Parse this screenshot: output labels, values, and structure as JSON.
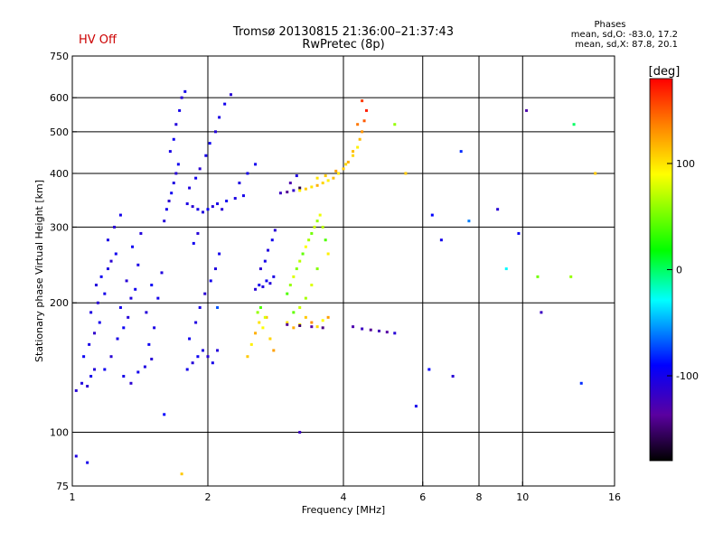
{
  "header": {
    "title_line1": "Tromsø 20130815 21:36:00–21:37:43",
    "title_line2": "RwPretec (8p)",
    "status": "HV Off"
  },
  "stats": {
    "heading": "Phases",
    "line1": "mean, sd,O: -83.0, 17.2",
    "line2": "mean, sd,X:  87.8, 20.1"
  },
  "colorbar": {
    "label": "[deg]",
    "ticks": [
      {
        "label": "100",
        "value": 100
      },
      {
        "label": "0",
        "value": 0
      },
      {
        "label": "-100",
        "value": -100
      }
    ],
    "range": [
      -180,
      180
    ]
  },
  "chart_data": {
    "type": "scatter",
    "xlabel": "Frequency [MHz]",
    "ylabel": "Stationary phase Virtual Height [km]",
    "x_scale": "log",
    "y_scale": "log",
    "xlim": [
      1,
      16
    ],
    "ylim": [
      75,
      750
    ],
    "grid": true,
    "x_ticks": [
      {
        "label": "1",
        "value": 1
      },
      {
        "label": "2",
        "value": 2
      },
      {
        "label": "4",
        "value": 4
      },
      {
        "label": "6",
        "value": 6
      },
      {
        "label": "8",
        "value": 8
      },
      {
        "label": "10",
        "value": 10
      },
      {
        "label": "16",
        "value": 16
      }
    ],
    "x_grid": [
      2,
      4,
      6,
      8,
      10
    ],
    "y_ticks": [
      {
        "label": "75",
        "value": 75
      },
      {
        "label": "100",
        "value": 100
      },
      {
        "label": "200",
        "value": 200
      },
      {
        "label": "300",
        "value": 300
      },
      {
        "label": "400",
        "value": 400
      },
      {
        "label": "500",
        "value": 500
      },
      {
        "label": "600",
        "value": 600
      },
      {
        "label": "750",
        "value": 750
      }
    ],
    "y_grid": [
      100,
      200,
      300,
      400,
      500,
      600
    ],
    "series": [
      {
        "values": [
          [
            1.02,
            125,
            -110
          ],
          [
            1.05,
            130,
            -105
          ],
          [
            1.08,
            128,
            -112
          ],
          [
            1.1,
            135,
            -100
          ],
          [
            1.12,
            140,
            -108
          ],
          [
            1.06,
            150,
            -95
          ],
          [
            1.09,
            160,
            -102
          ],
          [
            1.12,
            170,
            -115
          ],
          [
            1.15,
            180,
            -99
          ],
          [
            1.1,
            190,
            -104
          ],
          [
            1.14,
            200,
            -110
          ],
          [
            1.18,
            210,
            -101
          ],
          [
            1.13,
            220,
            -107
          ],
          [
            1.16,
            230,
            -96
          ],
          [
            1.2,
            240,
            -105
          ],
          [
            1.22,
            250,
            -112
          ],
          [
            1.25,
            260,
            -98
          ],
          [
            1.2,
            280,
            -103
          ],
          [
            1.24,
            300,
            -109
          ],
          [
            1.28,
            320,
            -100
          ],
          [
            1.18,
            140,
            -97
          ],
          [
            1.22,
            150,
            -111
          ],
          [
            1.26,
            165,
            -102
          ],
          [
            1.3,
            175,
            -95
          ],
          [
            1.33,
            185,
            -108
          ],
          [
            1.28,
            195,
            -100
          ],
          [
            1.35,
            205,
            -106
          ],
          [
            1.38,
            215,
            -98
          ],
          [
            1.32,
            225,
            -110
          ],
          [
            1.4,
            245,
            -103
          ],
          [
            1.36,
            270,
            -96
          ],
          [
            1.42,
            290,
            -107
          ],
          [
            1.3,
            135,
            -101
          ],
          [
            1.35,
            130,
            -112
          ],
          [
            1.4,
            138,
            -99
          ],
          [
            1.45,
            142,
            -105
          ],
          [
            1.5,
            148,
            -110
          ],
          [
            1.48,
            160,
            -97
          ],
          [
            1.52,
            175,
            -103
          ],
          [
            1.46,
            190,
            -108
          ],
          [
            1.55,
            205,
            -100
          ],
          [
            1.5,
            220,
            -95
          ],
          [
            1.58,
            235,
            -106
          ]
        ]
      },
      {
        "values": [
          [
            1.6,
            310,
            -108
          ],
          [
            1.62,
            330,
            -100
          ],
          [
            1.64,
            345,
            -112
          ],
          [
            1.66,
            360,
            -97
          ],
          [
            1.68,
            380,
            -105
          ],
          [
            1.7,
            400,
            -110
          ],
          [
            1.72,
            420,
            -98
          ],
          [
            1.65,
            450,
            -103
          ],
          [
            1.68,
            480,
            -96
          ],
          [
            1.7,
            520,
            -107
          ],
          [
            1.73,
            560,
            -101
          ],
          [
            1.75,
            600,
            -109
          ],
          [
            1.78,
            620,
            -99
          ],
          [
            1.8,
            340,
            -104
          ],
          [
            1.85,
            335,
            -111
          ],
          [
            1.9,
            330,
            -100
          ],
          [
            1.95,
            325,
            -106
          ],
          [
            2.0,
            330,
            -95
          ],
          [
            2.05,
            335,
            -108
          ],
          [
            2.1,
            340,
            -102
          ],
          [
            2.15,
            330,
            -110
          ],
          [
            2.2,
            345,
            -97
          ],
          [
            2.3,
            350,
            -104
          ],
          [
            2.4,
            355,
            -100
          ],
          [
            1.82,
            370,
            -106
          ],
          [
            1.88,
            390,
            -99
          ],
          [
            1.92,
            410,
            -112
          ],
          [
            1.98,
            440,
            -101
          ],
          [
            2.02,
            470,
            -96
          ],
          [
            2.08,
            500,
            -108
          ],
          [
            2.12,
            540,
            -103
          ],
          [
            2.18,
            580,
            -99
          ],
          [
            2.25,
            610,
            -110
          ],
          [
            2.35,
            380,
            -105
          ],
          [
            2.45,
            400,
            -100
          ],
          [
            2.55,
            420,
            -98
          ]
        ]
      },
      {
        "values": [
          [
            1.8,
            140,
            -100
          ],
          [
            1.85,
            145,
            -108
          ],
          [
            1.9,
            150,
            -96
          ],
          [
            1.95,
            155,
            -104
          ],
          [
            2.0,
            150,
            -110
          ],
          [
            2.05,
            145,
            -101
          ],
          [
            2.1,
            155,
            -107
          ],
          [
            1.82,
            165,
            -98
          ],
          [
            1.88,
            180,
            -105
          ],
          [
            1.92,
            195,
            -102
          ],
          [
            1.97,
            210,
            -111
          ],
          [
            2.03,
            225,
            -99
          ],
          [
            2.08,
            240,
            -106
          ],
          [
            2.12,
            260,
            -100
          ],
          [
            1.86,
            275,
            -97
          ],
          [
            1.9,
            290,
            -109
          ]
        ]
      },
      {
        "values": [
          [
            2.45,
            150,
            110
          ],
          [
            2.5,
            160,
            95
          ],
          [
            2.55,
            170,
            120
          ],
          [
            2.6,
            180,
            100
          ],
          [
            2.65,
            175,
            90
          ],
          [
            2.7,
            185,
            115
          ],
          [
            2.75,
            165,
            105
          ],
          [
            2.8,
            155,
            125
          ],
          [
            2.58,
            190,
            60
          ],
          [
            2.62,
            195,
            40
          ],
          [
            2.68,
            185,
            80
          ]
        ]
      },
      {
        "values": [
          [
            2.55,
            215,
            -110
          ],
          [
            2.6,
            220,
            -100
          ],
          [
            2.65,
            218,
            -105
          ],
          [
            2.7,
            225,
            -98
          ],
          [
            2.75,
            222,
            -108
          ],
          [
            2.8,
            230,
            -103
          ],
          [
            2.62,
            240,
            -112
          ],
          [
            2.68,
            250,
            -101
          ],
          [
            2.72,
            265,
            -106
          ],
          [
            2.78,
            280,
            -99
          ],
          [
            2.82,
            295,
            -110
          ]
        ]
      },
      {
        "values": [
          [
            2.9,
            360,
            -120
          ],
          [
            3.0,
            362,
            -140
          ],
          [
            3.1,
            365,
            -115
          ],
          [
            3.2,
            370,
            -160
          ],
          [
            3.05,
            380,
            -130
          ],
          [
            3.15,
            395,
            -105
          ]
        ]
      },
      {
        "values": [
          [
            3.2,
            365,
            95
          ],
          [
            3.3,
            368,
            110
          ],
          [
            3.4,
            372,
            100
          ],
          [
            3.5,
            375,
            120
          ],
          [
            3.6,
            380,
            105
          ],
          [
            3.7,
            385,
            95
          ],
          [
            3.8,
            390,
            115
          ],
          [
            3.9,
            400,
            100
          ],
          [
            4.0,
            410,
            110
          ],
          [
            4.1,
            425,
            120
          ],
          [
            4.2,
            440,
            105
          ],
          [
            4.3,
            460,
            95
          ],
          [
            4.35,
            480,
            115
          ],
          [
            4.4,
            500,
            130
          ],
          [
            4.45,
            530,
            150
          ],
          [
            4.5,
            560,
            170
          ],
          [
            3.5,
            390,
            100
          ],
          [
            3.65,
            395,
            110
          ],
          [
            3.85,
            405,
            125
          ],
          [
            4.05,
            420,
            105
          ],
          [
            4.2,
            450,
            115
          ],
          [
            4.3,
            520,
            140
          ],
          [
            4.4,
            590,
            160
          ]
        ]
      },
      {
        "values": [
          [
            3.0,
            210,
            40
          ],
          [
            3.05,
            220,
            60
          ],
          [
            3.1,
            230,
            80
          ],
          [
            3.15,
            240,
            55
          ],
          [
            3.2,
            250,
            70
          ],
          [
            3.25,
            260,
            45
          ],
          [
            3.3,
            270,
            90
          ],
          [
            3.35,
            280,
            65
          ],
          [
            3.4,
            290,
            50
          ],
          [
            3.45,
            300,
            75
          ],
          [
            3.5,
            310,
            60
          ],
          [
            3.55,
            320,
            85
          ],
          [
            3.6,
            300,
            70
          ],
          [
            3.65,
            280,
            40
          ],
          [
            3.7,
            260,
            95
          ],
          [
            3.5,
            240,
            55
          ],
          [
            3.4,
            220,
            80
          ],
          [
            3.3,
            205,
            65
          ],
          [
            3.2,
            195,
            75
          ],
          [
            3.1,
            190,
            45
          ]
        ]
      },
      {
        "values": [
          [
            3.0,
            180,
            100
          ],
          [
            3.1,
            175,
            120
          ],
          [
            3.2,
            178,
            95
          ],
          [
            3.3,
            185,
            110
          ],
          [
            3.4,
            180,
            130
          ],
          [
            3.5,
            176,
            105
          ],
          [
            3.6,
            182,
            90
          ],
          [
            3.7,
            185,
            125
          ]
        ]
      },
      {
        "values": [
          [
            3.0,
            178,
            -140
          ],
          [
            3.2,
            177,
            -150
          ],
          [
            3.4,
            176,
            -135
          ],
          [
            3.6,
            175,
            -145
          ],
          [
            4.2,
            176,
            -130
          ],
          [
            4.4,
            174,
            -120
          ],
          [
            4.6,
            173,
            -140
          ],
          [
            4.8,
            172,
            -125
          ],
          [
            5.0,
            171,
            -135
          ],
          [
            5.2,
            170,
            -110
          ]
        ]
      },
      {
        "values": [
          [
            5.2,
            520,
            60
          ],
          [
            5.5,
            400,
            110
          ],
          [
            6.3,
            320,
            -90
          ],
          [
            6.6,
            280,
            -100
          ],
          [
            7.3,
            450,
            -80
          ],
          [
            7.6,
            310,
            -60
          ],
          [
            8.8,
            330,
            -110
          ],
          [
            9.8,
            290,
            -95
          ],
          [
            10.2,
            560,
            -130
          ],
          [
            10.8,
            230,
            50
          ],
          [
            11.0,
            190,
            -120
          ],
          [
            13.5,
            130,
            -80
          ],
          [
            13.0,
            520,
            0
          ],
          [
            14.5,
            400,
            110
          ],
          [
            6.2,
            140,
            -90
          ],
          [
            7.0,
            135,
            -110
          ],
          [
            5.8,
            115,
            -100
          ],
          [
            1.02,
            88,
            -105
          ],
          [
            1.08,
            85,
            -100
          ],
          [
            1.6,
            110,
            -90
          ],
          [
            1.75,
            80,
            110
          ],
          [
            3.2,
            100,
            -120
          ],
          [
            2.1,
            195,
            -70
          ],
          [
            12.8,
            230,
            60
          ],
          [
            9.2,
            240,
            -30
          ]
        ]
      }
    ]
  }
}
